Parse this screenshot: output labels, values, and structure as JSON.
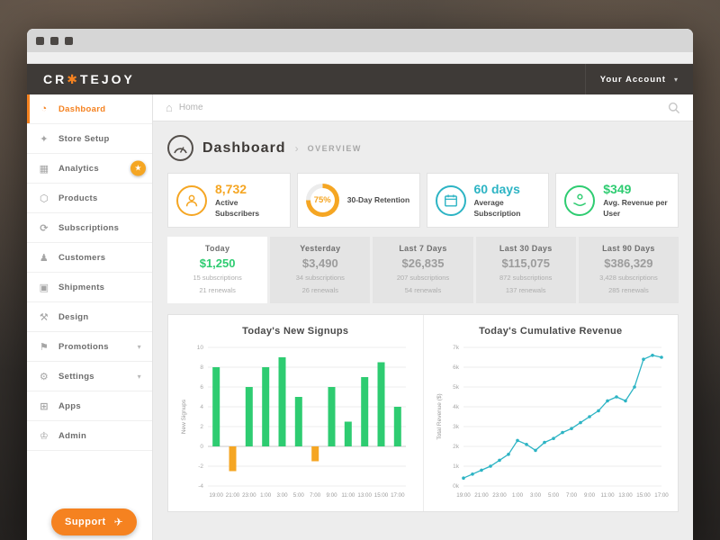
{
  "colors": {
    "brand_orange": "#f58220",
    "amber": "#f5a623",
    "teal": "#2db4c4",
    "green": "#2ecc71"
  },
  "header": {
    "logo": {
      "pre": "CR",
      "star": "✱",
      "post": "TEJOY"
    },
    "account_label": "Your Account",
    "chevron": "▾"
  },
  "sidebar": {
    "items": [
      {
        "label": "Dashboard",
        "glyph": "◔",
        "active": true
      },
      {
        "label": "Store Setup",
        "glyph": "✦"
      },
      {
        "label": "Analytics",
        "glyph": "▦",
        "badge_star": "★"
      },
      {
        "label": "Products",
        "glyph": "⬡"
      },
      {
        "label": "Subscriptions",
        "glyph": "⟳"
      },
      {
        "label": "Customers",
        "glyph": "♟"
      },
      {
        "label": "Shipments",
        "glyph": "▣"
      },
      {
        "label": "Design",
        "glyph": "⚒"
      },
      {
        "label": "Promotions",
        "glyph": "⚑",
        "chevron": "▾"
      },
      {
        "label": "Settings",
        "glyph": "⚙",
        "chevron": "▾"
      },
      {
        "label": "Apps",
        "glyph": "⊞"
      },
      {
        "label": "Admin",
        "glyph": "♔"
      }
    ]
  },
  "breadcrumb": {
    "home_icon": "⌂",
    "home_label": "Home"
  },
  "page": {
    "title": "Dashboard",
    "separator": "›",
    "subtitle": "Overview"
  },
  "stats": [
    {
      "value": "8,732",
      "label": "Active Subscribers",
      "color": "#f5a623",
      "icon": "subscribers-icon"
    },
    {
      "value": "75%",
      "label": "30-Day Retention",
      "color": "#f5a623",
      "ring_percent": 75,
      "icon": "retention-ring"
    },
    {
      "value": "60 days",
      "label": "Average Subscription",
      "color": "#2db4c4",
      "icon": "calendar-icon"
    },
    {
      "value": "$349",
      "label": "Avg. Revenue per User",
      "color": "#2ecc71",
      "icon": "revenue-per-user-icon"
    }
  ],
  "period_tabs": [
    {
      "label": "Today",
      "value": "$1,250",
      "subscriptions": "15 subscriptions",
      "renewals": "21 renewals",
      "active": true,
      "value_color": "#2ecc71"
    },
    {
      "label": "Yesterday",
      "value": "$3,490",
      "subscriptions": "34 subscriptions",
      "renewals": "26 renewals"
    },
    {
      "label": "Last 7 Days",
      "value": "$26,835",
      "subscriptions": "207 subscriptions",
      "renewals": "54 renewals"
    },
    {
      "label": "Last 30 Days",
      "value": "$115,075",
      "subscriptions": "872 subscriptions",
      "renewals": "137 renewals"
    },
    {
      "label": "Last 90 Days",
      "value": "$386,329",
      "subscriptions": "3,428 subscriptions",
      "renewals": "285 renewals"
    }
  ],
  "support": {
    "label": "Support",
    "icon_glyph": "✈"
  },
  "chart_data": [
    {
      "type": "bar",
      "title": "Today's New Signups",
      "ylabel": "New Signups",
      "ylim": [
        -4,
        10
      ],
      "yticks": [
        "10",
        "8",
        "6",
        "4",
        "2",
        "0",
        "-2",
        "-4"
      ],
      "categories": [
        "19:00",
        "21:00",
        "23:00",
        "1:00",
        "3:00",
        "5:00",
        "7:00",
        "9:00",
        "11:00",
        "13:00",
        "15:00",
        "17:00"
      ],
      "values": [
        8,
        -2.5,
        6,
        8,
        9,
        5,
        -1.5,
        6,
        2.5,
        7,
        8.5,
        4
      ],
      "pos_color": "#2ecc71",
      "neg_color": "#f5a623",
      "grid": true
    },
    {
      "type": "line",
      "title": "Today's Cumulative Revenue",
      "ylabel": "Total Revenue ($)",
      "ylim": [
        0,
        7
      ],
      "yticks": [
        "7k",
        "6k",
        "5k",
        "4k",
        "3k",
        "2k",
        "1k",
        "0k"
      ],
      "x_labels": [
        "19:00",
        "21:00",
        "23:00",
        "1:00",
        "3:00",
        "5:00",
        "7:00",
        "9:00",
        "11:00",
        "13:00",
        "15:00",
        "17:00"
      ],
      "values": [
        0.4,
        0.6,
        0.8,
        1.0,
        1.3,
        1.6,
        2.3,
        2.1,
        1.8,
        2.2,
        2.4,
        2.7,
        2.9,
        3.2,
        3.5,
        3.8,
        4.3,
        4.5,
        4.3,
        5.0,
        6.4,
        6.6,
        6.5
      ],
      "color": "#2db4c4",
      "grid": true
    }
  ]
}
